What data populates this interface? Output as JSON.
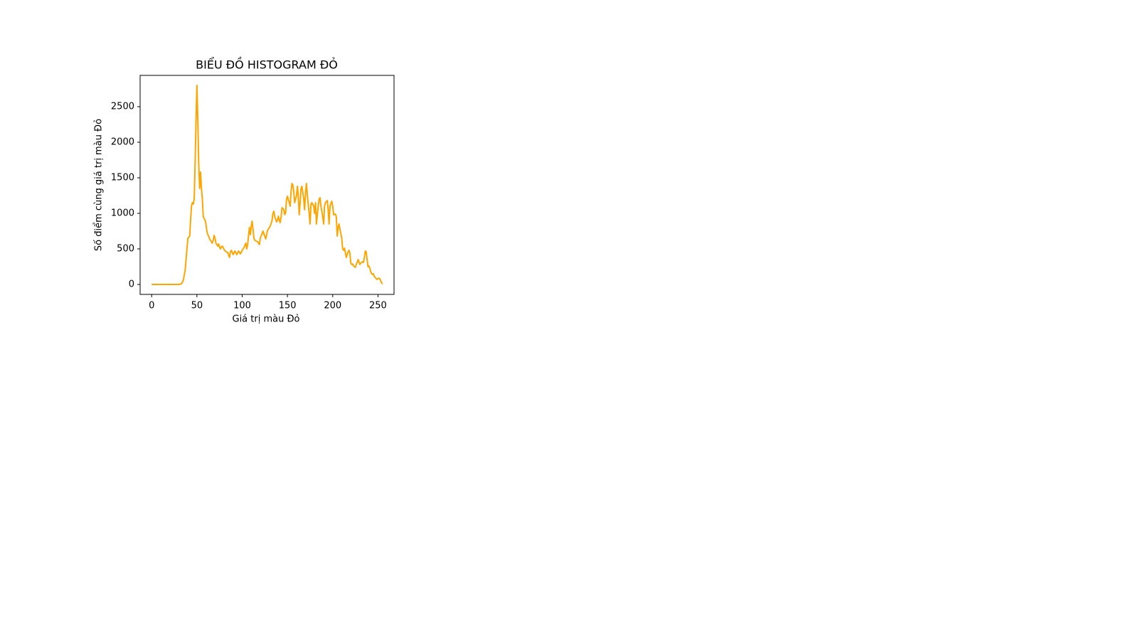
{
  "chart_data": {
    "type": "line",
    "title": "BIỂU ĐỒ HISTOGRAM ĐỎ",
    "x_label": "Giá trị màu Đỏ",
    "y_label": "Số điểm cùng giá trị màu Đỏ",
    "color": "#ffa500",
    "x": [
      0,
      30,
      33,
      35,
      37,
      39,
      40,
      42,
      43,
      44,
      45,
      46,
      47,
      48,
      49,
      50,
      51,
      52,
      53,
      54,
      55,
      56,
      57,
      58,
      59,
      60,
      61,
      62,
      63,
      64,
      65,
      66,
      67,
      68,
      69,
      70,
      71,
      72,
      73,
      74,
      75,
      76,
      77,
      78,
      79,
      80,
      82,
      84,
      86,
      87,
      88,
      90,
      92,
      94,
      96,
      98,
      100,
      102,
      104,
      105,
      106,
      108,
      109,
      110,
      111,
      113,
      114,
      117,
      119,
      120,
      123,
      126,
      128,
      131,
      133,
      134,
      135,
      136,
      138,
      139,
      140,
      141,
      142,
      143,
      144,
      146,
      147,
      148,
      149,
      150,
      152,
      153,
      154,
      155,
      156,
      157,
      158,
      160,
      161,
      162,
      163,
      164,
      165,
      166,
      168,
      169,
      170,
      171,
      172,
      174,
      175,
      176,
      177,
      179,
      180,
      181,
      182,
      184,
      185,
      186,
      187,
      189,
      190,
      191,
      192,
      194,
      195,
      196,
      197,
      199,
      200,
      201,
      203,
      204,
      205,
      206,
      207,
      208,
      210,
      211,
      212,
      213,
      214,
      215,
      217,
      218,
      219,
      220,
      221,
      222,
      223,
      225,
      226,
      227,
      228,
      229,
      230,
      231,
      233,
      234,
      235,
      236,
      237,
      238,
      239,
      240,
      241,
      242,
      243,
      244,
      245,
      246,
      247,
      248,
      249,
      250,
      251,
      252,
      253,
      254,
      255
    ],
    "values": [
      0,
      0,
      10,
      60,
      200,
      500,
      650,
      680,
      900,
      1100,
      1150,
      1130,
      1200,
      1700,
      2300,
      2800,
      2300,
      1700,
      1350,
      1580,
      1350,
      1200,
      950,
      930,
      900,
      850,
      750,
      700,
      680,
      640,
      620,
      600,
      580,
      620,
      690,
      650,
      580,
      560,
      540,
      570,
      520,
      500,
      530,
      540,
      520,
      490,
      460,
      450,
      380,
      460,
      480,
      420,
      470,
      420,
      470,
      430,
      480,
      520,
      580,
      500,
      560,
      800,
      700,
      820,
      890,
      650,
      620,
      600,
      560,
      650,
      750,
      640,
      760,
      820,
      900,
      1000,
      1030,
      950,
      880,
      900,
      960,
      900,
      870,
      950,
      1080,
      1050,
      980,
      1010,
      1200,
      1240,
      1150,
      1100,
      1300,
      1420,
      1400,
      1300,
      1150,
      1250,
      1380,
      1250,
      980,
      1150,
      1350,
      1380,
      1200,
      1050,
      1300,
      1420,
      1250,
      1000,
      850,
      1130,
      1150,
      1100,
      1000,
      1150,
      850,
      1100,
      1200,
      1220,
      1100,
      950,
      850,
      1100,
      1150,
      1180,
      1050,
      850,
      1100,
      1170,
      1100,
      980,
      990,
      950,
      680,
      800,
      850,
      780,
      650,
      500,
      480,
      510,
      450,
      380,
      460,
      480,
      440,
      300,
      280,
      290,
      260,
      240,
      280,
      310,
      350,
      320,
      280,
      300,
      320,
      310,
      380,
      470,
      460,
      350,
      250,
      260,
      230,
      180,
      150,
      140,
      150,
      110,
      100,
      80,
      70,
      80,
      90,
      80,
      50,
      25,
      5
    ],
    "xlim": [
      -12.75,
      267.75
    ],
    "ylim": [
      -140,
      2940
    ],
    "xticks": [
      0,
      50,
      100,
      150,
      200,
      250
    ],
    "yticks": [
      0,
      500,
      1000,
      1500,
      2000,
      2500
    ]
  }
}
